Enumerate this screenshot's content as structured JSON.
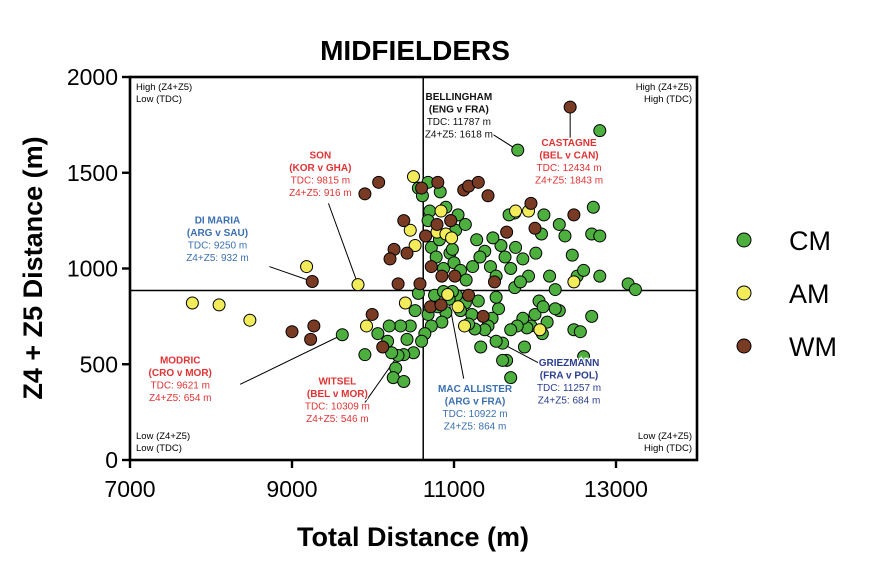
{
  "chart_data": {
    "type": "scatter",
    "title": "MIDFIELDERS",
    "xlabel": "Total Distance (m)",
    "ylabel": "Z4 + Z5 Distance (m)",
    "xlim": [
      7000,
      14000
    ],
    "ylim": [
      0,
      2000
    ],
    "xticks": [
      "7000",
      "9000",
      "11000",
      "13000"
    ],
    "yticks": [
      "0",
      "500",
      "1000",
      "1500",
      "2000"
    ],
    "xtick_values": [
      7000,
      9000,
      11000,
      13000
    ],
    "ytick_values": [
      0,
      500,
      1000,
      1500,
      2000
    ],
    "divider_x": 10620,
    "divider_y": 885,
    "colors": {
      "CM": "#4caf3e",
      "AM": "#f2ec5a",
      "WM": "#7a3b24"
    },
    "legend": [
      {
        "key": "CM",
        "label": "CM"
      },
      {
        "key": "AM",
        "label": "AM"
      },
      {
        "key": "WM",
        "label": "WM"
      }
    ],
    "quadrants": [
      {
        "pos": "top-left",
        "lines": [
          "High (Z4+Z5)",
          "Low (TDC)"
        ]
      },
      {
        "pos": "top-right",
        "lines": [
          "High (Z4+Z5)",
          "High (TDC)"
        ]
      },
      {
        "pos": "bottom-left",
        "lines": [
          "Low (Z4+Z5)",
          "Low (TDC)"
        ]
      },
      {
        "pos": "bottom-right",
        "lines": [
          "Low (Z4+Z5)",
          "High (TDC)"
        ]
      }
    ],
    "annotations": [
      {
        "id": "bellingham",
        "color": "#111111",
        "lines": [
          "BELLINGHAM",
          "(ENG v FRA)",
          "TDC: 11787 m",
          "Z4+Z5: 1618 m"
        ],
        "label_at": [
          11060,
          1880
        ],
        "point": [
          11787,
          1618
        ],
        "line_from": [
          11480,
          1700
        ]
      },
      {
        "id": "castagne",
        "color": "#e03434",
        "lines": [
          "CASTAGNE",
          "(BEL v CAN)",
          "TDC: 12434 m",
          "Z4+Z5: 1843 m"
        ],
        "label_at": [
          12420,
          1640
        ],
        "point": [
          12434,
          1843
        ],
        "line_from": [
          12434,
          1660
        ]
      },
      {
        "id": "son",
        "color": "#e03434",
        "lines": [
          "SON",
          "(KOR v GHA)",
          "TDC: 9815 m",
          "Z4+Z5: 916 m"
        ],
        "label_at": [
          9350,
          1575
        ],
        "point": [
          9815,
          916
        ],
        "line_from": [
          9450,
          1340
        ]
      },
      {
        "id": "dimaria",
        "color": "#3a6fb0",
        "lines": [
          "DI MARIA",
          "(ARG v SAU)",
          "TDC: 9250 m",
          "Z4+Z5: 932 m"
        ],
        "label_at": [
          8080,
          1235
        ],
        "point": [
          9250,
          932
        ],
        "line_from": [
          8720,
          1010
        ]
      },
      {
        "id": "modric",
        "color": "#e03434",
        "lines": [
          "MODRIC",
          "(CRO v MOR)",
          "TDC: 9621 m",
          "Z4+Z5: 654 m"
        ],
        "label_at": [
          7620,
          505
        ],
        "point": [
          9621,
          654
        ],
        "line_from": [
          8360,
          395
        ]
      },
      {
        "id": "witsel",
        "color": "#e03434",
        "lines": [
          "WITSEL",
          "(BEL v MOR)",
          "TDC: 10309 m",
          "Z4+Z5: 546 m"
        ],
        "label_at": [
          9560,
          395
        ],
        "point": [
          10309,
          546
        ],
        "line_from": [
          9900,
          300
        ]
      },
      {
        "id": "macallister",
        "color": "#3a6fb0",
        "lines": [
          "MAC ALLISTER",
          "(ARG v FRA)",
          "TDC: 10922 m",
          "Z4+Z5: 864 m"
        ],
        "label_at": [
          11260,
          355
        ],
        "point": [
          10922,
          864
        ],
        "line_from": [
          11120,
          425
        ]
      },
      {
        "id": "griezmann",
        "color": "#2c3e8f",
        "lines": [
          "GRIEZMANN",
          "(FRA v POL)",
          "TDC: 11257 m",
          "Z4+Z5: 684 m"
        ],
        "label_at": [
          12420,
          490
        ],
        "point": [
          11257,
          684
        ],
        "line_from": [
          12120,
          490
        ]
      }
    ],
    "series": [
      {
        "name": "CM",
        "points": [
          [
            10560,
            1420
          ],
          [
            10610,
            1380
          ],
          [
            10680,
            1450
          ],
          [
            10700,
            1300
          ],
          [
            10830,
            1400
          ],
          [
            10900,
            1320
          ],
          [
            10960,
            1250
          ],
          [
            11020,
            1200
          ],
          [
            11050,
            1280
          ],
          [
            11140,
            1230
          ],
          [
            10650,
            1170
          ],
          [
            10720,
            1110
          ],
          [
            10780,
            1060
          ],
          [
            10820,
            1150
          ],
          [
            10870,
            1000
          ],
          [
            10950,
            1080
          ],
          [
            11000,
            1030
          ],
          [
            11080,
            990
          ],
          [
            11150,
            940
          ],
          [
            11230,
            1010
          ],
          [
            11280,
            1150
          ],
          [
            11380,
            1090
          ],
          [
            11450,
            1010
          ],
          [
            11520,
            960
          ],
          [
            11580,
            1120
          ],
          [
            11630,
            1060
          ],
          [
            11700,
            1000
          ],
          [
            11760,
            1110
          ],
          [
            11850,
            1050
          ],
          [
            11920,
            960
          ],
          [
            12010,
            1080
          ],
          [
            12080,
            1180
          ],
          [
            12110,
            1280
          ],
          [
            12180,
            960
          ],
          [
            12250,
            890
          ],
          [
            12300,
            1230
          ],
          [
            12370,
            1170
          ],
          [
            12460,
            1070
          ],
          [
            12520,
            960
          ],
          [
            12600,
            990
          ],
          [
            12700,
            1180
          ],
          [
            12800,
            1170
          ],
          [
            12800,
            960
          ],
          [
            12720,
            1320
          ],
          [
            12800,
            1720
          ],
          [
            11787,
            1618
          ],
          [
            11750,
            1290
          ],
          [
            11680,
            1280
          ],
          [
            11480,
            1160
          ],
          [
            13150,
            920
          ],
          [
            13240,
            890
          ],
          [
            12300,
            780
          ],
          [
            12480,
            680
          ],
          [
            12560,
            670
          ],
          [
            12600,
            540
          ],
          [
            12700,
            750
          ],
          [
            12250,
            790
          ],
          [
            12150,
            720
          ],
          [
            12090,
            660
          ],
          [
            12050,
            830
          ],
          [
            12000,
            760
          ],
          [
            11950,
            700
          ],
          [
            11900,
            690
          ],
          [
            11870,
            590
          ],
          [
            11850,
            740
          ],
          [
            11780,
            700
          ],
          [
            11700,
            680
          ],
          [
            11650,
            520
          ],
          [
            11600,
            610
          ],
          [
            11550,
            790
          ],
          [
            11520,
            850
          ],
          [
            11470,
            740
          ],
          [
            11420,
            700
          ],
          [
            11380,
            680
          ],
          [
            11330,
            590
          ],
          [
            11300,
            830
          ],
          [
            11257,
            684
          ],
          [
            11220,
            760
          ],
          [
            11180,
            710
          ],
          [
            11140,
            820
          ],
          [
            11080,
            780
          ],
          [
            11030,
            860
          ],
          [
            10980,
            880
          ],
          [
            10940,
            840
          ],
          [
            10900,
            770
          ],
          [
            10850,
            720
          ],
          [
            10800,
            800
          ],
          [
            10760,
            860
          ],
          [
            10720,
            700
          ],
          [
            10680,
            760
          ],
          [
            10640,
            660
          ],
          [
            10600,
            620
          ],
          [
            10560,
            870
          ],
          [
            10520,
            780
          ],
          [
            10500,
            560
          ],
          [
            10460,
            700
          ],
          [
            10420,
            630
          ],
          [
            10380,
            550
          ],
          [
            10340,
            700
          ],
          [
            10309,
            546
          ],
          [
            10280,
            480
          ],
          [
            10250,
            430
          ],
          [
            10230,
            560
          ],
          [
            10200,
            700
          ],
          [
            10180,
            620
          ],
          [
            10060,
            660
          ],
          [
            9900,
            550
          ],
          [
            9621,
            654
          ],
          [
            10380,
            410
          ],
          [
            11700,
            430
          ],
          [
            11520,
            620
          ],
          [
            11750,
            900
          ],
          [
            12100,
            800
          ],
          [
            11820,
            930
          ],
          [
            10680,
            1250
          ],
          [
            10980,
            1100
          ],
          [
            11320,
            1060
          ],
          [
            10870,
            880
          ],
          [
            11600,
            520
          ]
        ]
      },
      {
        "name": "AM",
        "points": [
          [
            7770,
            820
          ],
          [
            8100,
            810
          ],
          [
            8480,
            730
          ],
          [
            9180,
            1010
          ],
          [
            9815,
            916
          ],
          [
            9920,
            700
          ],
          [
            10400,
            820
          ],
          [
            10460,
            1200
          ],
          [
            10520,
            1120
          ],
          [
            10500,
            1480
          ],
          [
            10790,
            1190
          ],
          [
            10900,
            1180
          ],
          [
            10970,
            1160
          ],
          [
            10840,
            1300
          ],
          [
            11760,
            1300
          ],
          [
            11920,
            1300
          ],
          [
            11050,
            800
          ],
          [
            10922,
            864
          ],
          [
            11130,
            700
          ],
          [
            12060,
            680
          ],
          [
            12480,
            930
          ]
        ]
      },
      {
        "name": "WM",
        "points": [
          [
            9000,
            670
          ],
          [
            9230,
            630
          ],
          [
            9250,
            932
          ],
          [
            9270,
            700
          ],
          [
            9900,
            1390
          ],
          [
            10070,
            1450
          ],
          [
            10120,
            590
          ],
          [
            10260,
            1100
          ],
          [
            10310,
            920
          ],
          [
            10380,
            1250
          ],
          [
            10420,
            1080
          ],
          [
            10600,
            1420
          ],
          [
            10650,
            1170
          ],
          [
            10710,
            800
          ],
          [
            10790,
            1230
          ],
          [
            10800,
            1450
          ],
          [
            10960,
            1250
          ],
          [
            11010,
            960
          ],
          [
            11120,
            1410
          ],
          [
            11180,
            1430
          ],
          [
            11300,
            1450
          ],
          [
            11420,
            1380
          ],
          [
            11500,
            930
          ],
          [
            11650,
            1190
          ],
          [
            11950,
            1340
          ],
          [
            12434,
            1843
          ],
          [
            12480,
            1280
          ],
          [
            12000,
            1210
          ],
          [
            10720,
            1010
          ],
          [
            10850,
            960
          ],
          [
            10210,
            1050
          ],
          [
            9990,
            760
          ],
          [
            10580,
            920
          ],
          [
            10840,
            810
          ],
          [
            11180,
            860
          ],
          [
            11360,
            750
          ]
        ]
      }
    ]
  }
}
